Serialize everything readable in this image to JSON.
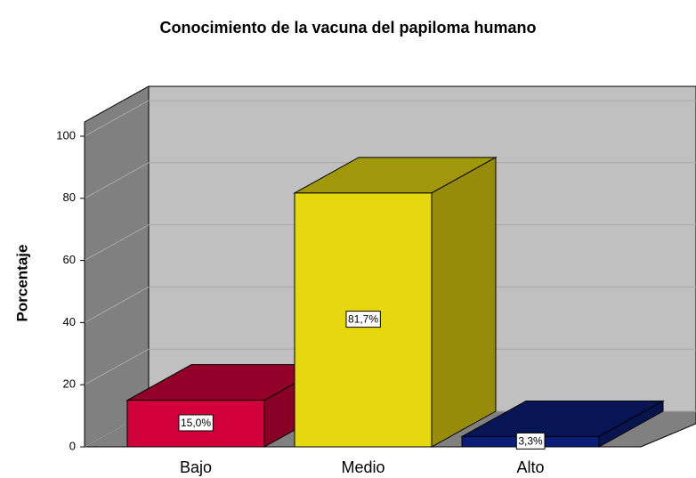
{
  "chart_data": {
    "type": "bar3d",
    "title": "Conocimiento de la vacuna del papiloma humano",
    "ylabel": "Porcentaje",
    "categories": [
      "Bajo",
      "Medio",
      "Alto"
    ],
    "values": [
      15.0,
      81.7,
      3.3
    ],
    "value_labels": [
      "15,0%",
      "81,7%",
      "3,3%"
    ],
    "colors": [
      "#d2003a",
      "#e6d70f",
      "#0a1e78"
    ],
    "ylim": [
      0,
      100
    ],
    "yticks": [
      0,
      20,
      40,
      60,
      80,
      100
    ],
    "grid": true
  }
}
